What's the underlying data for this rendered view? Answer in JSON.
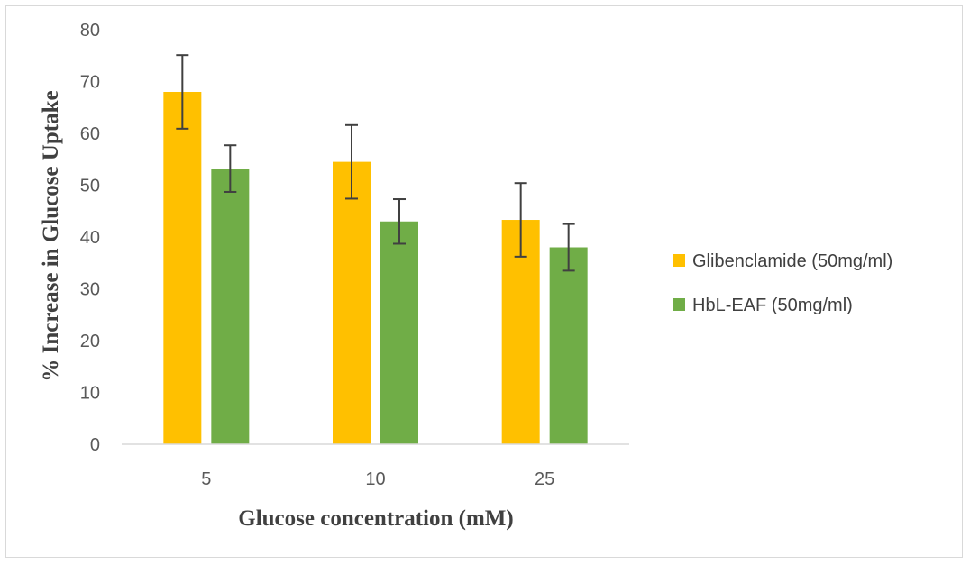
{
  "chart_data": {
    "type": "bar",
    "categories": [
      "5",
      "10",
      "25"
    ],
    "series": [
      {
        "name": "Glibenclamide (50mg/ml)",
        "values": [
          68.0,
          54.5,
          43.3
        ],
        "errors": [
          7.1,
          7.1,
          7.1
        ],
        "color": "#FFC000"
      },
      {
        "name": "HbL-EAF (50mg/ml)",
        "values": [
          53.2,
          43.0,
          38.0
        ],
        "errors": [
          4.5,
          4.3,
          4.5
        ],
        "color": "#70AD47"
      }
    ],
    "xlabel": "Glucose concentration (mM)",
    "ylabel": "% Increase in Glucose Uptake",
    "ylim": [
      0,
      80
    ],
    "yticks": [
      "0",
      "10",
      "20",
      "30",
      "40",
      "50",
      "60",
      "70",
      "80"
    ],
    "grid": false,
    "legend_position": "right",
    "error_bar_color": "#404040",
    "axis_color": "#d9d9d9"
  }
}
